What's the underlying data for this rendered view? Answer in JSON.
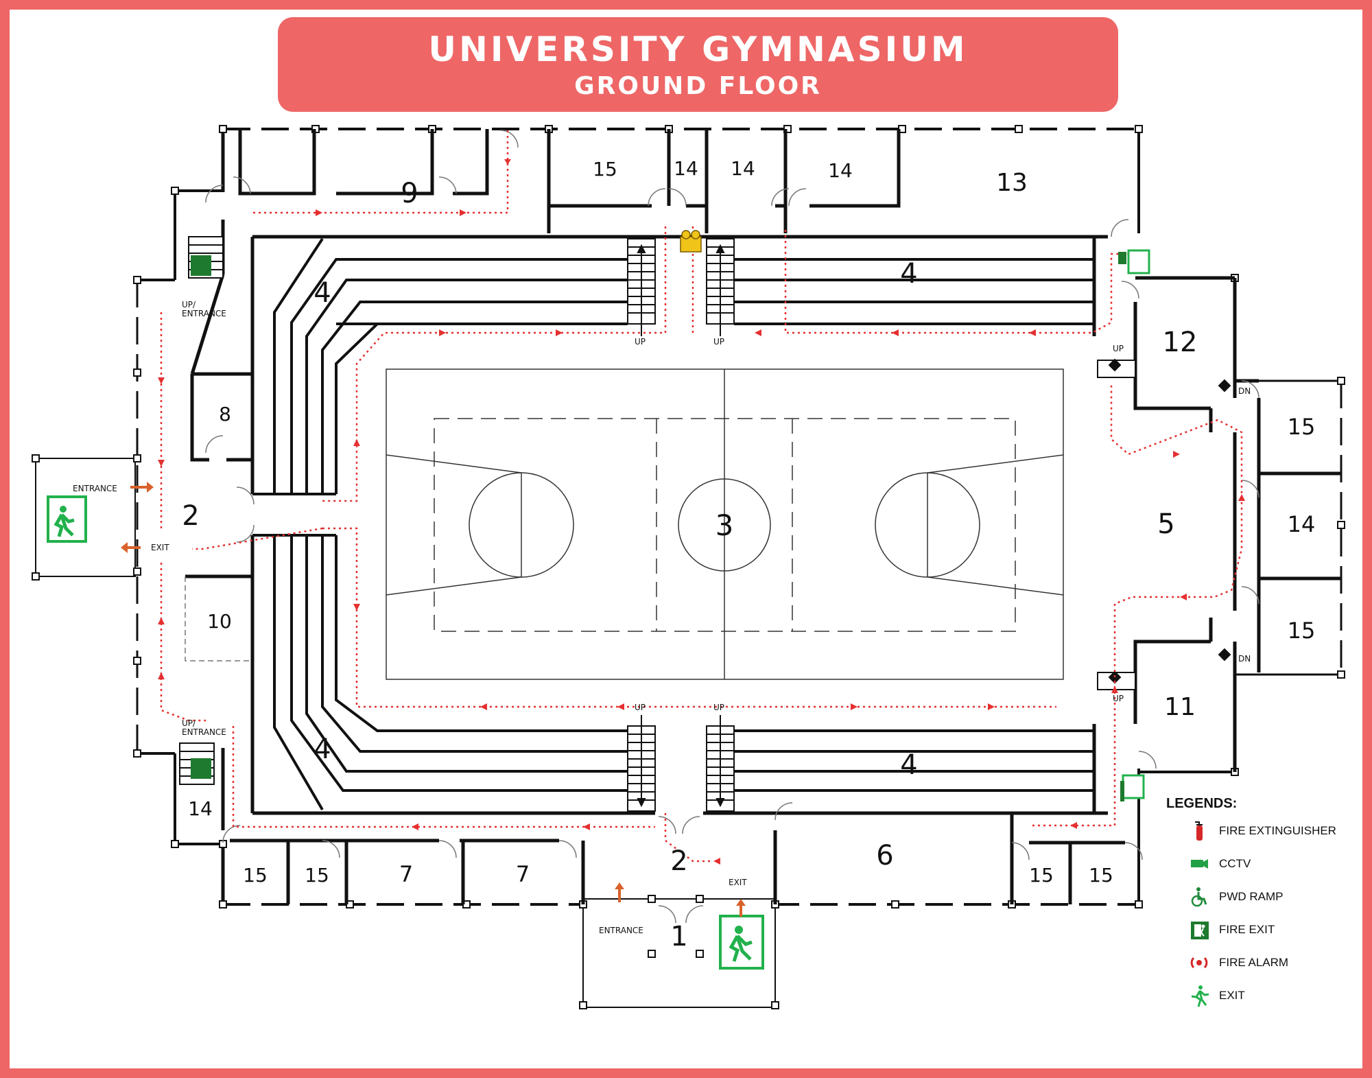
{
  "title": {
    "line1": "UNIVERSITY GYMNASIUM",
    "line2": "GROUND FLOOR"
  },
  "rooms": {
    "r1": "1",
    "r2_west": "2",
    "r2_south": "2",
    "r3": "3",
    "r4_nw": "4",
    "r4_ne": "4",
    "r4_sw": "4",
    "r4_se": "4",
    "r5": "5",
    "r6": "6",
    "r7_a": "7",
    "r7_b": "7",
    "r8": "8",
    "r9": "9",
    "r10": "10",
    "r11": "11",
    "r12": "12",
    "r13": "13",
    "r14_n1": "14",
    "r14_n2": "14",
    "r14_n3": "14",
    "r14_e": "14",
    "r14_sw": "14",
    "r15_n": "15",
    "r15_e1": "15",
    "r15_e2": "15",
    "r15_s1": "15",
    "r15_s2": "15",
    "r15_s3": "15",
    "r15_s4": "15"
  },
  "labels": {
    "entrance_west": "ENTRANCE",
    "exit_west": "EXIT",
    "entrance_south": "ENTRANCE",
    "exit_south": "EXIT",
    "up_entrance_nw": "UP/\nENTRANCE",
    "up_entrance_sw": "UP/\nENTRANCE",
    "up": "UP",
    "dn": "DN"
  },
  "legend": {
    "heading": "LEGENDS:",
    "items": [
      {
        "label": "FIRE EXTINGUISHER",
        "icon": "fire-extinguisher-icon",
        "color": "#d62828"
      },
      {
        "label": "CCTV",
        "icon": "cctv-icon",
        "color": "#22a046"
      },
      {
        "label": "PWD RAMP",
        "icon": "wheelchair-icon",
        "color": "#1f8a3a"
      },
      {
        "label": "FIRE EXIT",
        "icon": "fire-exit-icon",
        "color": "#1e7a2e"
      },
      {
        "label": "FIRE ALARM",
        "icon": "fire-alarm-icon",
        "color": "#d62828"
      },
      {
        "label": "EXIT",
        "icon": "exit-running-man-icon",
        "color": "#22b14c"
      }
    ]
  },
  "colors": {
    "frame": "#ee6666",
    "evac_route": "#e53030",
    "exit_green": "#22b14c",
    "walls": "#111111"
  }
}
